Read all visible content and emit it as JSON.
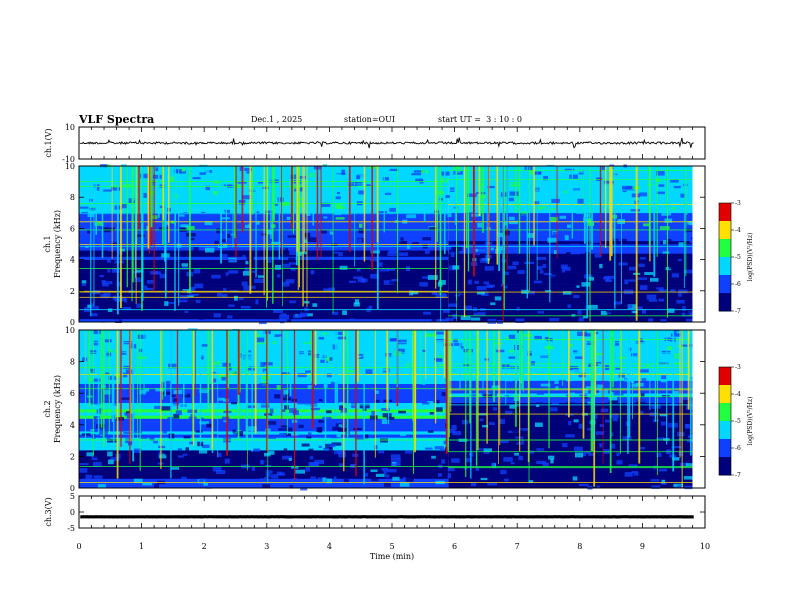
{
  "header": {
    "title": "VLF Spectra",
    "date": "Dec.1 , 2025",
    "station": "station=OUI",
    "start": "start UT =  3 : 10 : 0"
  },
  "colors": {
    "spec_low": "#00007a",
    "spec_mid": "#1040ff",
    "spec_cyan": "#00d8ff",
    "spec_green": "#20ff40",
    "spec_yellow": "#ffe000",
    "spec_red": "#e00000"
  },
  "chart_data": [
    {
      "id": "ch1-waveform",
      "type": "line",
      "ylabel": "ch.1(V)",
      "ylim": [
        -10,
        10
      ],
      "yticks": [
        "10",
        "-10"
      ],
      "baseline_v": 0,
      "xlim": [
        0,
        10
      ]
    },
    {
      "id": "ch1-spectrogram",
      "type": "heatmap",
      "ylabel": "ch.1\nFrequency (kHz)",
      "ylabel_lines": [
        "ch.1",
        "Frequency (kHz)"
      ],
      "ylim": [
        0,
        10
      ],
      "yticks": [
        "0",
        "2",
        "4",
        "6",
        "8",
        "10"
      ],
      "xlim": [
        0,
        10
      ],
      "colorbar": {
        "label": "log(PSD)(V²/Hz)",
        "range": [
          -7,
          -3
        ],
        "ticks": [
          "-3",
          "-4",
          "-5",
          "-6",
          "-7"
        ]
      },
      "regime_change_min": 5.9
    },
    {
      "id": "ch2-spectrogram",
      "type": "heatmap",
      "ylabel": "ch.2\nFrequency (kHz)",
      "ylabel_lines": [
        "ch.2",
        "Frequency (kHz)"
      ],
      "ylim": [
        0,
        10
      ],
      "yticks": [
        "0",
        "2",
        "4",
        "6",
        "8",
        "10"
      ],
      "xlim": [
        0,
        10
      ],
      "colorbar": {
        "label": "log(PSD)(V²/Hz)",
        "range": [
          -7,
          -3
        ],
        "ticks": [
          "-3",
          "-4",
          "-5",
          "-6",
          "-7"
        ]
      },
      "regime_change_min": 5.9
    },
    {
      "id": "ch3-waveform",
      "type": "line",
      "ylabel": "ch.3(V)",
      "ylim": [
        -5,
        5
      ],
      "yticks": [
        "5",
        "0",
        "-5"
      ],
      "baseline_v": -1.5,
      "xlim": [
        0,
        10
      ],
      "xlabel": "Time (min)",
      "xticks": [
        "0",
        "1",
        "2",
        "3",
        "4",
        "5",
        "6",
        "7",
        "8",
        "9",
        "10"
      ]
    }
  ]
}
